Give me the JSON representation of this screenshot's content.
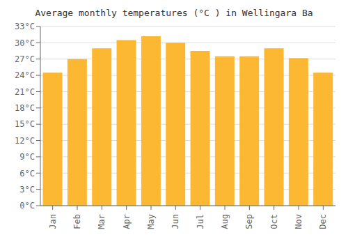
{
  "chart_data": {
    "type": "bar",
    "title": "Average monthly temperatures (°C ) in Wellingara Ba",
    "categories": [
      "Jan",
      "Feb",
      "Mar",
      "Apr",
      "May",
      "Jun",
      "Jul",
      "Aug",
      "Sep",
      "Oct",
      "Nov",
      "Dec"
    ],
    "values": [
      24.5,
      27.0,
      29.0,
      30.5,
      31.2,
      30.0,
      28.5,
      27.5,
      27.5,
      29.0,
      27.2,
      24.5
    ],
    "color": "#FDB833",
    "ylim": [
      0,
      33
    ],
    "yticks": [
      {
        "value": 0,
        "label": "0°C"
      },
      {
        "value": 3,
        "label": "3°C"
      },
      {
        "value": 6,
        "label": "6°C"
      },
      {
        "value": 9,
        "label": "9°C"
      },
      {
        "value": 12,
        "label": "12°C"
      },
      {
        "value": 15,
        "label": "15°C"
      },
      {
        "value": 18,
        "label": "18°C"
      },
      {
        "value": 21,
        "label": "21°C"
      },
      {
        "value": 24,
        "label": "24°C"
      },
      {
        "value": 27,
        "label": "27°C"
      },
      {
        "value": 30,
        "label": "30°C"
      },
      {
        "value": 33,
        "label": "33°C"
      }
    ],
    "grid": true
  }
}
